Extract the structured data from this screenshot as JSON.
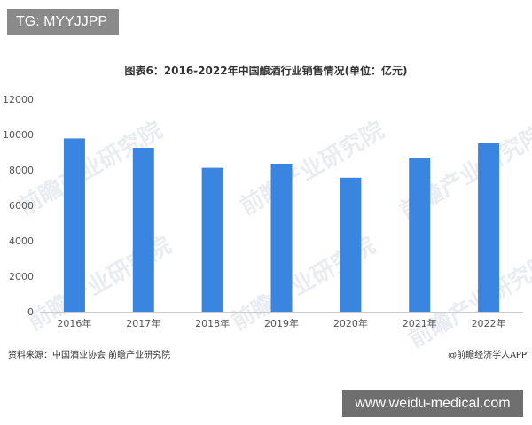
{
  "watermark_top_left": "TG: MYYJJPP",
  "watermark_bottom_right": "www.weidu-medical.com",
  "watermark_text": "前瞻产业研究院",
  "source": "资料来源：中国酒业协会 前瞻产业研究院",
  "credit": "@前瞻经济学人APP",
  "chart_data": {
    "type": "bar",
    "title": "图表6：2016-2022年中国酿酒行业销售情况(单位：亿元)",
    "categories": [
      "2016年",
      "2017年",
      "2018年",
      "2019年",
      "2020年",
      "2021年",
      "2022年"
    ],
    "values": [
      9780,
      9250,
      8120,
      8350,
      7560,
      8690,
      9510
    ],
    "ylim": [
      0,
      12000
    ],
    "yticks": [
      0,
      2000,
      4000,
      6000,
      8000,
      10000,
      12000
    ],
    "grid": false,
    "bar_color": "#3a85e0",
    "axis_color": "#cccccc"
  }
}
